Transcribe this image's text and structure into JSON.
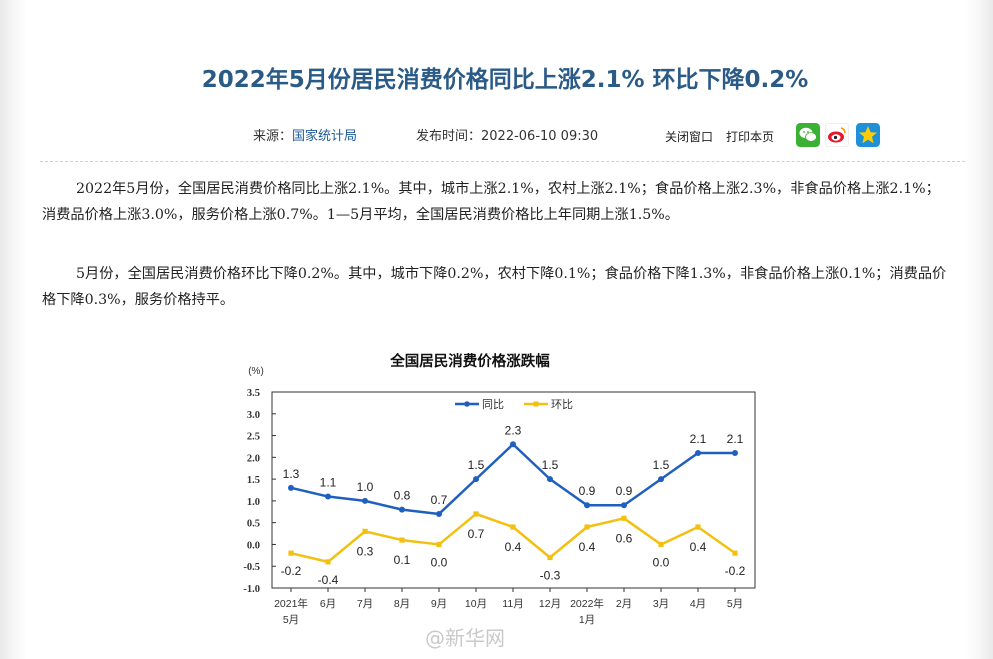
{
  "article": {
    "title": "2022年5月份居民消费价格同比上涨2.1% 环比下降0.2%",
    "source_label": "来源：",
    "source_name": "国家统计局",
    "publish_label": "发布时间：2022-06-10  09:30",
    "close_window": "关闭窗口",
    "print_page": "打印本页",
    "paragraphs": [
      "2022年5月份，全国居民消费价格同比上涨2.1%。其中，城市上涨2.1%，农村上涨2.1%；食品价格上涨2.3%，非食品价格上涨2.1%；消费品价格上涨3.0%，服务价格上涨0.7%。1—5月平均，全国居民消费价格比上年同期上涨1.5%。",
      "5月份，全国居民消费价格环比下降0.2%。其中，城市下降0.2%，农村下降0.1%；食品价格下降1.3%，非食品价格上涨0.1%；消费品价格下降0.3%，服务价格持平。"
    ],
    "watermark": "@新华网"
  },
  "share": {
    "wechat_color": "#3cb034",
    "weibo_color": "#e6162d",
    "qzone_color": "#1e90d8"
  },
  "chart_data": {
    "type": "line",
    "title": "全国居民消费价格涨跌幅",
    "ylabel": "(%)",
    "ylim": [
      -1.0,
      3.5
    ],
    "yticks": [
      "3.5",
      "3.0",
      "2.5",
      "2.0",
      "1.5",
      "1.0",
      "0.5",
      "0.0",
      "-0.5",
      "-1.0"
    ],
    "categories": [
      [
        "2021年",
        "5月"
      ],
      [
        "6月"
      ],
      [
        "7月"
      ],
      [
        "8月"
      ],
      [
        "9月"
      ],
      [
        "10月"
      ],
      [
        "11月"
      ],
      [
        "12月"
      ],
      [
        "2022年",
        "1月"
      ],
      [
        "2月"
      ],
      [
        "3月"
      ],
      [
        "4月"
      ],
      [
        "5月"
      ]
    ],
    "legend_position": "top",
    "grid": false,
    "series": [
      {
        "name": "同比",
        "color": "#1f5fbf",
        "values": [
          1.3,
          1.1,
          1.0,
          0.8,
          0.7,
          1.5,
          2.3,
          1.5,
          0.9,
          0.9,
          1.5,
          2.1,
          2.1
        ],
        "labels": [
          "1.3",
          "1.1",
          "1.0",
          "0.8",
          "0.7",
          "1.5",
          "2.3",
          "1.5",
          "0.9",
          "0.9",
          "1.5",
          "2.1",
          "2.1"
        ]
      },
      {
        "name": "环比",
        "color": "#f2c010",
        "values": [
          -0.2,
          -0.4,
          0.3,
          0.1,
          0.0,
          0.7,
          0.4,
          -0.3,
          0.4,
          0.6,
          0.0,
          0.4,
          -0.2
        ],
        "labels": [
          "-0.2",
          "-0.4",
          "0.3",
          "0.1",
          "0.0",
          "0.7",
          "0.4",
          "-0.3",
          "0.4",
          "0.6",
          "0.0",
          "0.4",
          "-0.2"
        ]
      }
    ]
  }
}
